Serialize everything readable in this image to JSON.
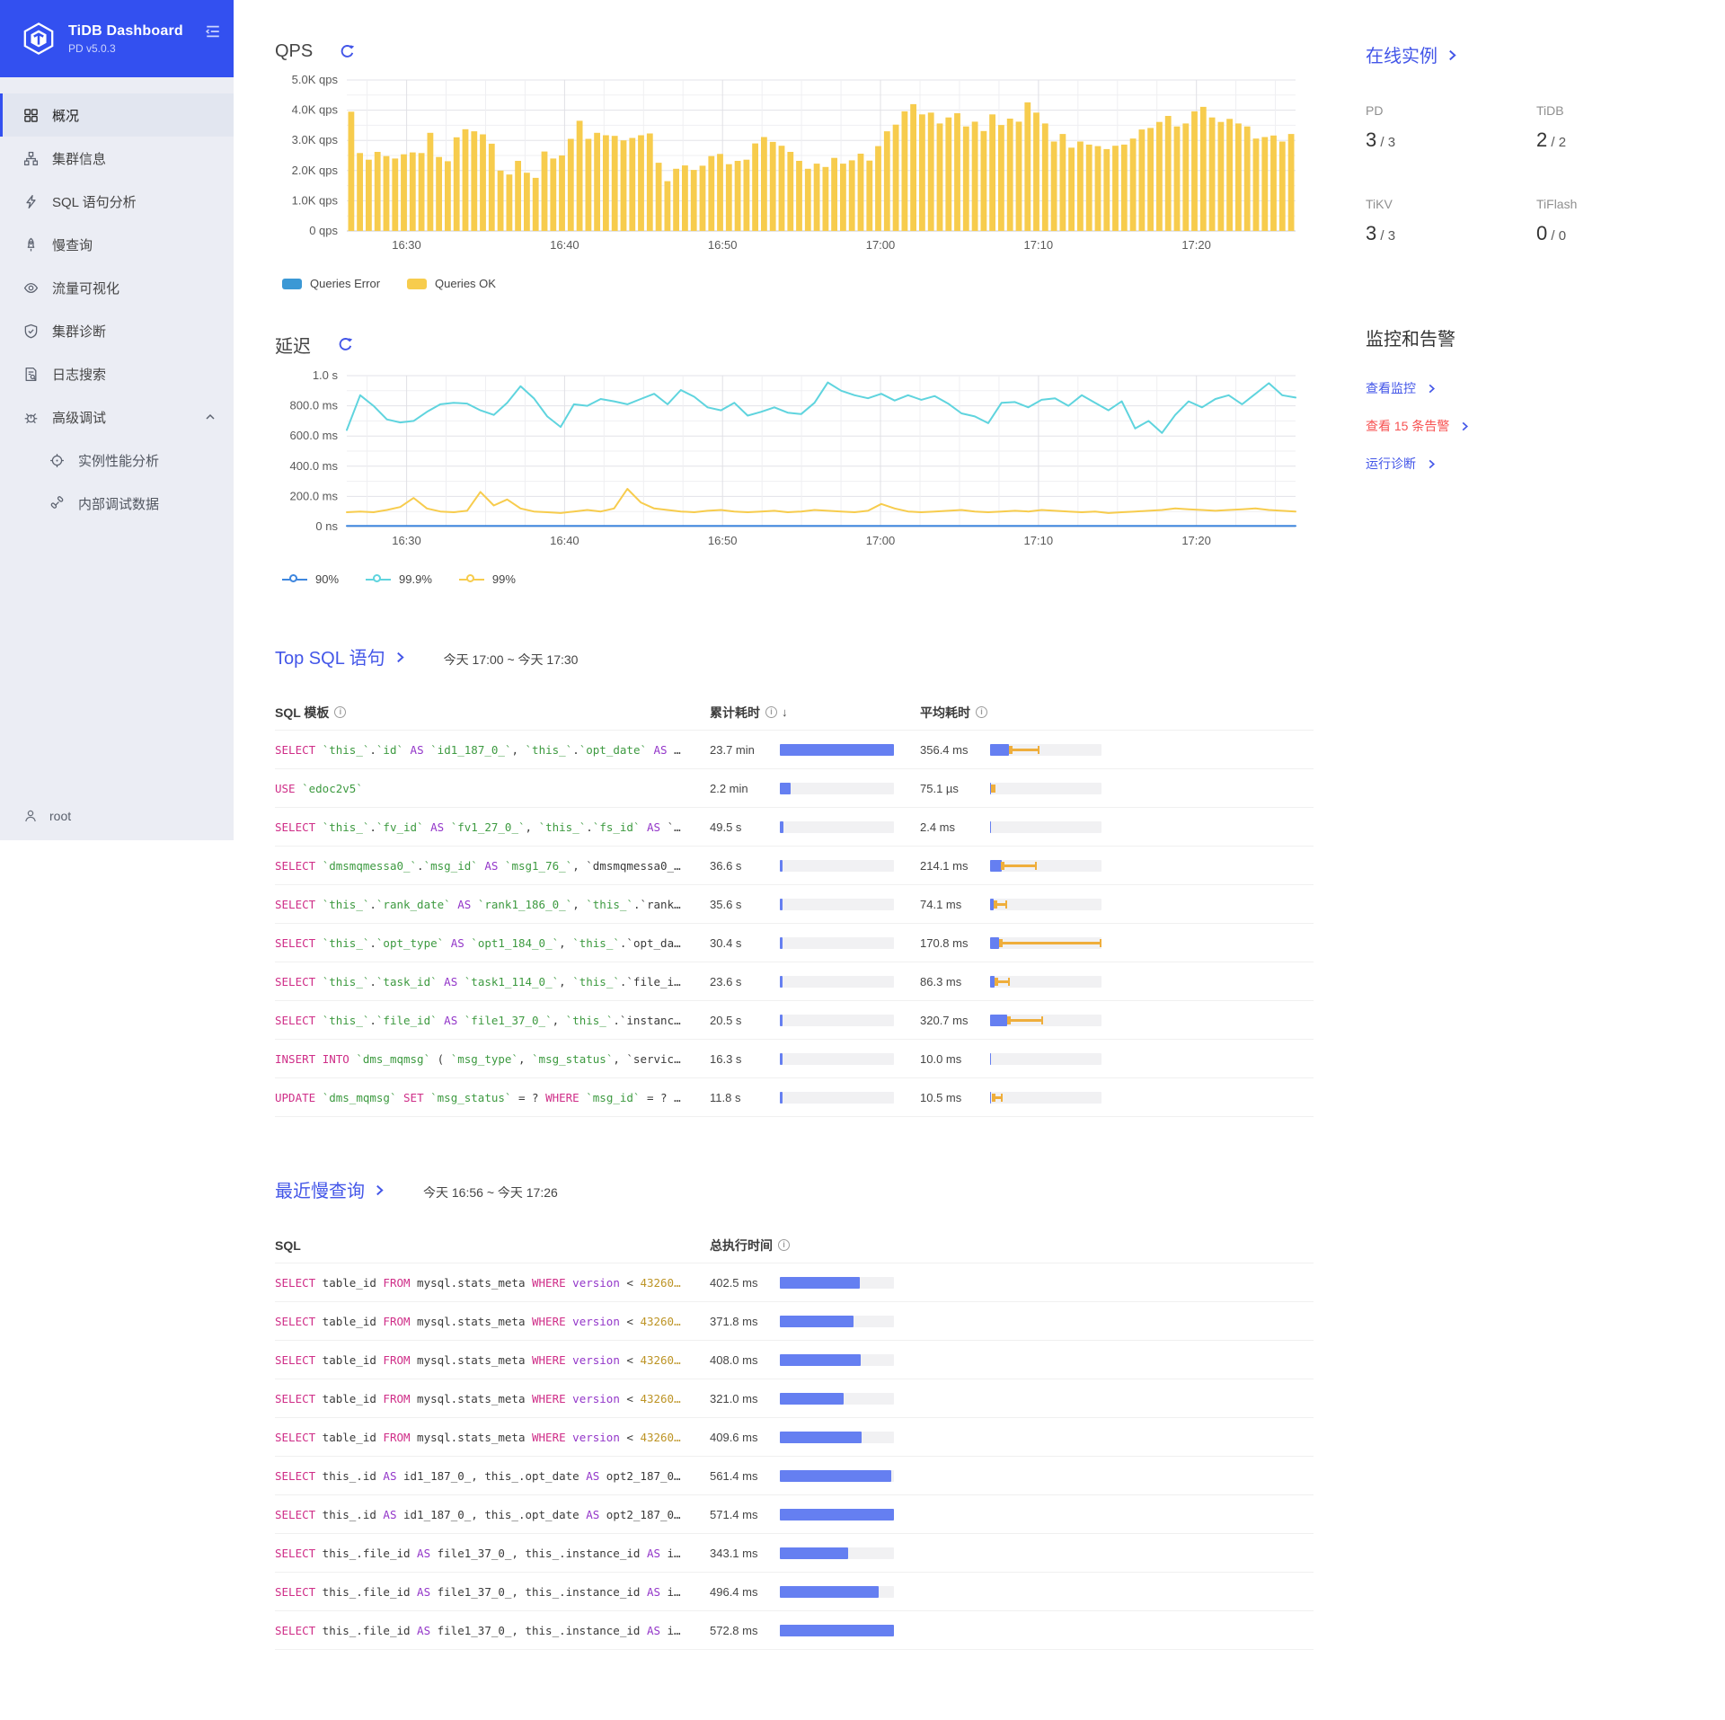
{
  "app": {
    "title": "TiDB Dashboard",
    "subtitle": "PD v5.0.3"
  },
  "sidebar": {
    "items": [
      {
        "name": "overview",
        "icon": "grid-icon",
        "label": "概况",
        "active": true
      },
      {
        "name": "cluster-info",
        "icon": "cluster-icon",
        "label": "集群信息"
      },
      {
        "name": "sql-statements",
        "icon": "thunderbolt-icon",
        "label": "SQL 语句分析"
      },
      {
        "name": "slow-query",
        "icon": "rocket-icon",
        "label": "慢查询"
      },
      {
        "name": "keyviz",
        "icon": "eye-icon",
        "label": "流量可视化"
      },
      {
        "name": "cluster-diagnose",
        "icon": "shield-icon",
        "label": "集群诊断"
      },
      {
        "name": "log-search",
        "icon": "log-search-icon",
        "label": "日志搜索"
      },
      {
        "name": "advanced-debug",
        "icon": "bug-icon",
        "label": "高级调试",
        "expanded": true,
        "children": [
          {
            "name": "instance-profiling",
            "icon": "aim-icon",
            "label": "实例性能分析"
          },
          {
            "name": "debug-data",
            "icon": "api-icon",
            "label": "内部调试数据"
          }
        ]
      }
    ],
    "user": "root"
  },
  "chart_data": [
    {
      "type": "bar",
      "title": "QPS",
      "ylim": [
        0,
        5000
      ],
      "y_ticks": [
        "5.0K qps",
        "4.0K qps",
        "3.0K qps",
        "2.0K qps",
        "1.0K qps",
        "0 qps"
      ],
      "x_ticks": [
        {
          "label": "16:30",
          "f": 0.063
        },
        {
          "label": "16:40",
          "f": 0.2295
        },
        {
          "label": "16:50",
          "f": 0.396
        },
        {
          "label": "17:00",
          "f": 0.5625
        },
        {
          "label": "17:10",
          "f": 0.729
        },
        {
          "label": "17:20",
          "f": 0.8955
        }
      ],
      "series": [
        {
          "name": "Queries Error",
          "color": "#3b98d5",
          "values": []
        },
        {
          "name": "Queries OK",
          "color": "#f7cc4d",
          "values": [
            3950,
            2580,
            2360,
            2620,
            2480,
            2400,
            2540,
            2600,
            2580,
            3250,
            2450,
            2310,
            3100,
            3370,
            3300,
            3200,
            2890,
            2000,
            1870,
            2320,
            1930,
            1760,
            2630,
            2400,
            2500,
            3050,
            3650,
            3050,
            3250,
            3170,
            3150,
            3000,
            3080,
            3170,
            3230,
            2260,
            1650,
            2060,
            2170,
            2020,
            2160,
            2480,
            2550,
            2210,
            2320,
            2360,
            2900,
            3110,
            2950,
            2820,
            2620,
            2320,
            2060,
            2230,
            2120,
            2420,
            2230,
            2340,
            2560,
            2330,
            2810,
            3300,
            3520,
            3960,
            4200,
            3860,
            3920,
            3560,
            3760,
            3900,
            3460,
            3620,
            3310,
            3860,
            3510,
            3720,
            3620,
            4260,
            3920,
            3560,
            2960,
            3210,
            2760,
            2960,
            2860,
            2810,
            2710,
            2820,
            2860,
            3060,
            3360,
            3410,
            3610,
            3810,
            3460,
            3560,
            3960,
            4110,
            3760,
            3610,
            3710,
            3560,
            3460,
            3060,
            3110,
            3160,
            2960,
            3210
          ]
        }
      ]
    },
    {
      "type": "line",
      "title": "延迟",
      "ylim_ms": [
        0,
        1000
      ],
      "y_ticks": [
        "1.0 s",
        "800.0 ms",
        "600.0 ms",
        "400.0 ms",
        "200.0 ms",
        "0 ns"
      ],
      "x_ticks": [
        {
          "label": "16:30",
          "f": 0.063
        },
        {
          "label": "16:40",
          "f": 0.2295
        },
        {
          "label": "16:50",
          "f": 0.396
        },
        {
          "label": "17:00",
          "f": 0.5625
        },
        {
          "label": "17:10",
          "f": 0.729
        },
        {
          "label": "17:20",
          "f": 0.8955
        }
      ],
      "series": [
        {
          "name": "90%",
          "color": "#3e86de",
          "flat_value_ms": 4
        },
        {
          "name": "99.9%",
          "color": "#5fd4de",
          "values_ms": [
            640,
            870,
            800,
            710,
            690,
            700,
            760,
            810,
            820,
            815,
            770,
            740,
            820,
            930,
            850,
            730,
            660,
            810,
            800,
            845,
            830,
            810,
            845,
            880,
            810,
            905,
            860,
            790,
            770,
            820,
            735,
            760,
            790,
            755,
            745,
            820,
            955,
            900,
            870,
            850,
            880,
            835,
            870,
            840,
            865,
            815,
            750,
            730,
            685,
            820,
            825,
            790,
            840,
            850,
            800,
            870,
            820,
            770,
            830,
            650,
            700,
            620,
            740,
            830,
            790,
            845,
            870,
            810,
            880,
            950,
            870,
            855
          ]
        },
        {
          "name": "99%",
          "color": "#f7cc4d",
          "values_ms": [
            95,
            100,
            95,
            110,
            130,
            190,
            120,
            100,
            95,
            105,
            230,
            140,
            180,
            120,
            100,
            95,
            90,
            100,
            110,
            100,
            120,
            250,
            160,
            120,
            110,
            100,
            95,
            105,
            110,
            100,
            95,
            100,
            105,
            95,
            100,
            110,
            105,
            100,
            95,
            105,
            150,
            120,
            100,
            95,
            100,
            105,
            110,
            100,
            95,
            100,
            105,
            100,
            110,
            105,
            100,
            95,
            100,
            90,
            95,
            100,
            105,
            110,
            120,
            115,
            110,
            105,
            110,
            115,
            120,
            110,
            105,
            100
          ]
        }
      ]
    }
  ],
  "top_sql": {
    "title": "Top SQL 语句",
    "time_range": "今天 17:00 ~ 今天 17:30",
    "columns": [
      "SQL 模板",
      "累计耗时",
      "平均耗时"
    ],
    "max_total": "23.7 min",
    "max_avg": "356.4 ms",
    "rows": [
      {
        "sql": "SELECT `this_`.`id` AS `id1_187_0_`, `this_`.`opt_date` AS …",
        "total": "23.7 min",
        "avg": "356.4 ms",
        "err_range_pct": [
          17,
          43
        ]
      },
      {
        "sql": "USE `edoc2v5`",
        "total": "2.2 min",
        "avg": "75.1 µs",
        "err_range_pct": [
          1,
          3
        ]
      },
      {
        "sql": "SELECT `this_`.`fv_id` AS `fv1_27_0_`, `this_`.`fs_id` AS `…",
        "total": "49.5 s",
        "avg": "2.4 ms",
        "err_range_pct": null
      },
      {
        "sql": "SELECT `dmsmqmessa0_`.`msg_id` AS `msg1_76_`, `dmsmqmessa0_…",
        "total": "36.6 s",
        "avg": "214.1 ms",
        "err_range_pct": [
          10,
          40
        ]
      },
      {
        "sql": "SELECT `this_`.`rank_date` AS `rank1_186_0_`, `this_`.`rank…",
        "total": "35.6 s",
        "avg": "74.1 ms",
        "err_range_pct": [
          3,
          14
        ]
      },
      {
        "sql": "SELECT `this_`.`opt_type` AS `opt1_184_0_`, `this_`.`opt_da…",
        "total": "30.4 s",
        "avg": "170.8 ms",
        "err_range_pct": [
          8,
          98
        ]
      },
      {
        "sql": "SELECT `this_`.`task_id` AS `task1_114_0_`, `this_`.`file_i…",
        "total": "23.6 s",
        "avg": "86.3 ms",
        "err_range_pct": [
          4,
          16
        ]
      },
      {
        "sql": "SELECT `this_`.`file_id` AS `file1_37_0_`, `this_`.`instanc…",
        "total": "20.5 s",
        "avg": "320.7 ms",
        "err_range_pct": [
          15,
          46
        ]
      },
      {
        "sql": "INSERT INTO `dms_mqmsg` ( `msg_type`, `msg_status`, `servic…",
        "total": "16.3 s",
        "avg": "10.0 ms",
        "err_range_pct": null
      },
      {
        "sql": "UPDATE `dms_mqmsg` SET `msg_status` = ? WHERE `msg_id` = ? …",
        "total": "11.8 s",
        "avg": "10.5 ms",
        "err_range_pct": [
          2,
          10
        ]
      }
    ]
  },
  "slow_query": {
    "title": "最近慢查询",
    "time_range": "今天 16:56 ~ 今天 17:26",
    "columns": [
      "SQL",
      "总执行时间"
    ],
    "rows": [
      {
        "sql": "SELECT table_id FROM mysql.stats_meta WHERE version < 43260…",
        "time": "402.5 ms"
      },
      {
        "sql": "SELECT table_id FROM mysql.stats_meta WHERE version < 43260…",
        "time": "371.8 ms"
      },
      {
        "sql": "SELECT table_id FROM mysql.stats_meta WHERE version < 43260…",
        "time": "408.0 ms"
      },
      {
        "sql": "SELECT table_id FROM mysql.stats_meta WHERE version < 43260…",
        "time": "321.0 ms"
      },
      {
        "sql": "SELECT table_id FROM mysql.stats_meta WHERE version < 43260…",
        "time": "409.6 ms"
      },
      {
        "sql": "SELECT this_.id AS id1_187_0_, this_.opt_date AS opt2_187_0…",
        "time": "561.4 ms"
      },
      {
        "sql": "SELECT this_.id AS id1_187_0_, this_.opt_date AS opt2_187_0…",
        "time": "571.4 ms"
      },
      {
        "sql": "SELECT this_.file_id AS file1_37_0_, this_.instance_id AS i…",
        "time": "343.1 ms"
      },
      {
        "sql": "SELECT this_.file_id AS file1_37_0_, this_.instance_id AS i…",
        "time": "496.4 ms"
      },
      {
        "sql": "SELECT this_.file_id AS file1_37_0_, this_.instance_id AS i…",
        "time": "572.8 ms"
      }
    ]
  },
  "instances": {
    "title": "在线实例",
    "groups": [
      {
        "label": "PD",
        "up": "3",
        "total": "3"
      },
      {
        "label": "TiDB",
        "up": "2",
        "total": "2"
      },
      {
        "label": "TiKV",
        "up": "3",
        "total": "3"
      },
      {
        "label": "TiFlash",
        "up": "0",
        "total": "0"
      }
    ]
  },
  "monitoring": {
    "title": "监控和告警",
    "links": [
      {
        "name": "view-monitoring",
        "label": "查看监控",
        "color": "blue"
      },
      {
        "name": "view-alerts",
        "label": "查看 15 条告警",
        "color": "red"
      },
      {
        "name": "run-diagnose",
        "label": "运行诊断",
        "color": "blue"
      }
    ]
  }
}
